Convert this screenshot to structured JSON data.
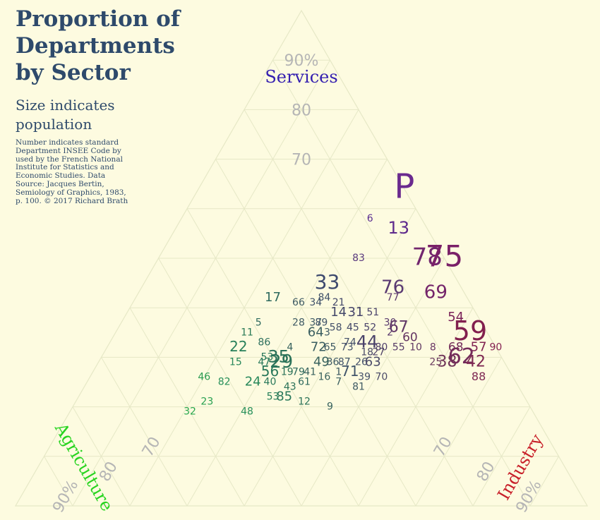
{
  "header": {
    "title": "Proportion of Departments by Sector",
    "subtitle": "Size indicates population",
    "note": "Number indicates standard Department INSEE Code by used by the French National Institute for Statistics and Economic Studies. Data Source: Jacques Bertin, Semiology of Graphics, 1983, p. 100. © 2017 Richard Brath"
  },
  "colors": {
    "background": "#fdfbe0",
    "grid": "#e6e8c6",
    "tick": "#b5b5b5",
    "services": "#3520b0",
    "agriculture": "#28d420",
    "industry": "#c8202a",
    "title": "#2e4a6b"
  },
  "chart_data": {
    "type": "scatter",
    "subtype": "ternary",
    "axes": {
      "services": {
        "label": "Services",
        "ticks": [
          "90%",
          "80",
          "70"
        ]
      },
      "agriculture": {
        "label": "Agriculture",
        "ticks": [
          "90%",
          "80",
          "70"
        ]
      },
      "industry": {
        "label": "Industry",
        "ticks": [
          "90%",
          "80",
          "70"
        ]
      }
    },
    "grid_step": 10,
    "points": [
      {
        "label": "P",
        "services": 64,
        "agriculture": 0,
        "industry": 36,
        "color": "#6a2a8e"
      },
      {
        "label": "6",
        "services": 58,
        "agriculture": 9,
        "industry": 33,
        "color": "#5a2d90"
      },
      {
        "label": "13",
        "services": 56,
        "agriculture": 5,
        "industry": 39,
        "color": "#5e2a8c"
      },
      {
        "label": "83",
        "services": 50,
        "agriculture": 15,
        "industry": 35,
        "color": "#5a3a7e"
      },
      {
        "label": "78",
        "services": 50,
        "agriculture": 3,
        "industry": 47,
        "color": "#72266e"
      },
      {
        "label": "75",
        "services": 50,
        "agriculture": 0,
        "industry": 50,
        "color": "#7a2068"
      },
      {
        "label": "33",
        "services": 45,
        "agriculture": 23,
        "industry": 32,
        "color": "#3e4a6e"
      },
      {
        "label": "76",
        "services": 44,
        "agriculture": 12,
        "industry": 44,
        "color": "#5a3a72"
      },
      {
        "label": "69",
        "services": 43,
        "agriculture": 5,
        "industry": 52,
        "color": "#74246a"
      },
      {
        "label": "84",
        "services": 42,
        "agriculture": 25,
        "industry": 33,
        "color": "#3e5068"
      },
      {
        "label": "77",
        "services": 42,
        "agriculture": 13,
        "industry": 45,
        "color": "#5e3a6e"
      },
      {
        "label": "17",
        "services": 42,
        "agriculture": 34,
        "industry": 24,
        "color": "#2e6a5e"
      },
      {
        "label": "66",
        "services": 41,
        "agriculture": 30,
        "industry": 29,
        "color": "#3e5a64"
      },
      {
        "label": "34",
        "services": 41,
        "agriculture": 27,
        "industry": 32,
        "color": "#3e5068"
      },
      {
        "label": "21",
        "services": 41,
        "agriculture": 23,
        "industry": 36,
        "color": "#44486a"
      },
      {
        "label": "14",
        "services": 39,
        "agriculture": 24,
        "industry": 37,
        "color": "#44486a"
      },
      {
        "label": "31",
        "services": 39,
        "agriculture": 21,
        "industry": 40,
        "color": "#46446a"
      },
      {
        "label": "51",
        "services": 39,
        "agriculture": 18,
        "industry": 43,
        "color": "#4a426a"
      },
      {
        "label": "5",
        "services": 37,
        "agriculture": 39,
        "industry": 24,
        "color": "#2e6a5e"
      },
      {
        "label": "28",
        "services": 37,
        "agriculture": 32,
        "industry": 31,
        "color": "#3e5a64"
      },
      {
        "label": "37",
        "services": 37,
        "agriculture": 29,
        "industry": 34,
        "color": "#3e5a64"
      },
      {
        "label": "89",
        "services": 37,
        "agriculture": 28,
        "industry": 35,
        "color": "#40546a"
      },
      {
        "label": "58",
        "services": 36,
        "agriculture": 26,
        "industry": 38,
        "color": "#44506a"
      },
      {
        "label": "45",
        "services": 36,
        "agriculture": 23,
        "industry": 41,
        "color": "#44486a"
      },
      {
        "label": "52",
        "services": 36,
        "agriculture": 20,
        "industry": 44,
        "color": "#4a426a"
      },
      {
        "label": "30",
        "services": 37,
        "agriculture": 16,
        "industry": 47,
        "color": "#5a3a6e"
      },
      {
        "label": "67",
        "services": 36,
        "agriculture": 15,
        "industry": 49,
        "color": "#603666"
      },
      {
        "label": "11",
        "services": 35,
        "agriculture": 42,
        "industry": 23,
        "color": "#2a7a56"
      },
      {
        "label": "64",
        "services": 35,
        "agriculture": 30,
        "industry": 35,
        "color": "#3a5e60"
      },
      {
        "label": "3",
        "services": 35,
        "agriculture": 28,
        "industry": 37,
        "color": "#3e5a64"
      },
      {
        "label": "74",
        "services": 33,
        "agriculture": 25,
        "industry": 42,
        "color": "#44506a"
      },
      {
        "label": "44",
        "services": 33,
        "agriculture": 22,
        "industry": 45,
        "color": "#4a426a"
      },
      {
        "label": "2",
        "services": 35,
        "agriculture": 17,
        "industry": 48,
        "color": "#5a3a6e"
      },
      {
        "label": "60",
        "services": 34,
        "agriculture": 14,
        "industry": 52,
        "color": "#643462"
      },
      {
        "label": "54",
        "services": 38,
        "agriculture": 4,
        "industry": 58,
        "color": "#7a2258"
      },
      {
        "label": "59",
        "services": 35,
        "agriculture": 3,
        "industry": 62,
        "color": "#82204e"
      },
      {
        "label": "80",
        "services": 32,
        "agriculture": 20,
        "industry": 48,
        "color": "#4e3e6a"
      },
      {
        "label": "22",
        "services": 32,
        "agriculture": 45,
        "industry": 23,
        "color": "#28805a"
      },
      {
        "label": "86",
        "services": 33,
        "agriculture": 40,
        "industry": 27,
        "color": "#2e705e"
      },
      {
        "label": "4",
        "services": 32,
        "agriculture": 36,
        "industry": 32,
        "color": "#38625e"
      },
      {
        "label": "72",
        "services": 32,
        "agriculture": 31,
        "industry": 37,
        "color": "#3a5e60"
      },
      {
        "label": "65",
        "services": 32,
        "agriculture": 29,
        "industry": 39,
        "color": "#3e5a64"
      },
      {
        "label": "73",
        "services": 32,
        "agriculture": 26,
        "industry": 42,
        "color": "#44506a"
      },
      {
        "label": "18",
        "services": 31,
        "agriculture": 23,
        "industry": 46,
        "color": "#4a4a68"
      },
      {
        "label": "27",
        "services": 31,
        "agriculture": 21,
        "industry": 48,
        "color": "#4e4268"
      },
      {
        "label": "55",
        "services": 32,
        "agriculture": 17,
        "industry": 51,
        "color": "#583c68"
      },
      {
        "label": "10",
        "services": 32,
        "agriculture": 14,
        "industry": 54,
        "color": "#603862"
      },
      {
        "label": "8",
        "services": 32,
        "agriculture": 11,
        "industry": 57,
        "color": "#683462"
      },
      {
        "label": "68",
        "services": 32,
        "agriculture": 7,
        "industry": 61,
        "color": "#742c5a"
      },
      {
        "label": "57",
        "services": 32,
        "agriculture": 3,
        "industry": 65,
        "color": "#822452"
      },
      {
        "label": "90",
        "services": 32,
        "agriculture": 0,
        "industry": 68,
        "color": "#862252"
      },
      {
        "label": "35",
        "services": 30,
        "agriculture": 39,
        "industry": 31,
        "color": "#2a7258"
      },
      {
        "label": "53",
        "services": 30,
        "agriculture": 41,
        "industry": 29,
        "color": "#28785a"
      },
      {
        "label": "29",
        "services": 29,
        "agriculture": 39,
        "industry": 32,
        "color": "#2a7258"
      },
      {
        "label": "15",
        "services": 29,
        "agriculture": 47,
        "industry": 24,
        "color": "#28885a"
      },
      {
        "label": "47",
        "services": 29,
        "agriculture": 42,
        "industry": 29,
        "color": "#28785a"
      },
      {
        "label": "49",
        "services": 29,
        "agriculture": 32,
        "industry": 39,
        "color": "#38625e"
      },
      {
        "label": "36",
        "services": 29,
        "agriculture": 30,
        "industry": 41,
        "color": "#3e5a64"
      },
      {
        "label": "87",
        "services": 29,
        "agriculture": 28,
        "industry": 43,
        "color": "#40546a"
      },
      {
        "label": "26",
        "services": 29,
        "agriculture": 25,
        "industry": 46,
        "color": "#44506a"
      },
      {
        "label": "63",
        "services": 29,
        "agriculture": 23,
        "industry": 48,
        "color": "#4a4a68"
      },
      {
        "label": "25",
        "services": 29,
        "agriculture": 12,
        "industry": 59,
        "color": "#6a3a5e"
      },
      {
        "label": "38",
        "services": 29,
        "agriculture": 10,
        "industry": 61,
        "color": "#703458"
      },
      {
        "label": "62",
        "services": 30,
        "agriculture": 7,
        "industry": 63,
        "color": "#742c5a"
      },
      {
        "label": "42",
        "services": 29,
        "agriculture": 5,
        "industry": 66,
        "color": "#7e2852"
      },
      {
        "label": "46",
        "services": 26,
        "agriculture": 54,
        "industry": 20,
        "color": "#2a9a50"
      },
      {
        "label": "56",
        "services": 27,
        "agriculture": 42,
        "industry": 31,
        "color": "#28785a"
      },
      {
        "label": "19",
        "services": 27,
        "agriculture": 39,
        "industry": 34,
        "color": "#2a7258"
      },
      {
        "label": "79",
        "services": 27,
        "agriculture": 37,
        "industry": 36,
        "color": "#2e6a5e"
      },
      {
        "label": "41",
        "services": 27,
        "agriculture": 35,
        "industry": 38,
        "color": "#38625e"
      },
      {
        "label": "16",
        "services": 26,
        "agriculture": 33,
        "industry": 41,
        "color": "#38625e"
      },
      {
        "label": "1",
        "services": 27,
        "agriculture": 30,
        "industry": 43,
        "color": "#3e5a64"
      },
      {
        "label": "71",
        "services": 27,
        "agriculture": 28,
        "industry": 45,
        "color": "#40546a"
      },
      {
        "label": "39",
        "services": 26,
        "agriculture": 26,
        "industry": 48,
        "color": "#44506a"
      },
      {
        "label": "70",
        "services": 26,
        "agriculture": 23,
        "industry": 51,
        "color": "#4a4a68"
      },
      {
        "label": "88",
        "services": 26,
        "agriculture": 6,
        "industry": 68,
        "color": "#7e2852"
      },
      {
        "label": "82",
        "services": 25,
        "agriculture": 51,
        "industry": 24,
        "color": "#28905a"
      },
      {
        "label": "24",
        "services": 25,
        "agriculture": 46,
        "industry": 29,
        "color": "#28885a"
      },
      {
        "label": "40",
        "services": 25,
        "agriculture": 43,
        "industry": 32,
        "color": "#28785a"
      },
      {
        "label": "43",
        "services": 24,
        "agriculture": 40,
        "industry": 36,
        "color": "#2a7258"
      },
      {
        "label": "61",
        "services": 25,
        "agriculture": 37,
        "industry": 38,
        "color": "#2e6a5e"
      },
      {
        "label": "7",
        "services": 25,
        "agriculture": 31,
        "industry": 44,
        "color": "#3a5e60"
      },
      {
        "label": "81",
        "services": 24,
        "agriculture": 28,
        "industry": 48,
        "color": "#3e5a64"
      },
      {
        "label": "53",
        "services": 22,
        "agriculture": 44,
        "industry": 34,
        "color": "#28805a"
      },
      {
        "label": "85",
        "services": 22,
        "agriculture": 42,
        "industry": 36,
        "color": "#28785a"
      },
      {
        "label": "12",
        "services": 21,
        "agriculture": 39,
        "industry": 40,
        "color": "#2a7258"
      },
      {
        "label": "9",
        "services": 20,
        "agriculture": 35,
        "industry": 45,
        "color": "#38625e"
      },
      {
        "label": "23",
        "services": 21,
        "agriculture": 56,
        "industry": 23,
        "color": "#28a050"
      },
      {
        "label": "32",
        "services": 19,
        "agriculture": 60,
        "industry": 21,
        "color": "#28a84e"
      },
      {
        "label": "48",
        "services": 19,
        "agriculture": 50,
        "industry": 31,
        "color": "#28905a"
      }
    ]
  }
}
